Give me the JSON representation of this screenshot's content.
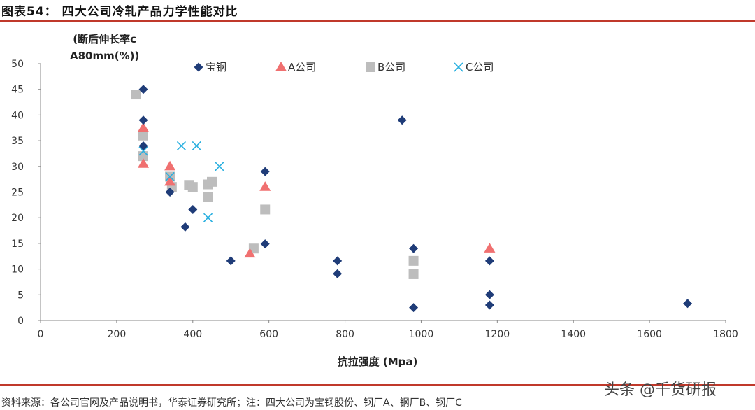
{
  "header": {
    "title": "图表54：  四大公司冷轧产品力学性能对比"
  },
  "footer": {
    "source": "资料来源：各公司官网及产品说明书，华泰证券研究所；注：四大公司为宝钢股份、钢厂A、钢厂B、钢厂C",
    "watermark": "头条 @千货研报"
  },
  "colors": {
    "accent_rule": "#c0392b",
    "baosteel": "#1f3c78",
    "company_a": "#f07070",
    "company_b": "#bdbdbd",
    "company_c": "#2ab0e0"
  },
  "chart_data": {
    "type": "scatter",
    "title": "四大公司冷轧产品力学性能对比",
    "xlabel": "抗拉强度 (Mpa)",
    "ylabel": "(断后伸长率c\nA80mm(%))",
    "xlim": [
      0,
      1800
    ],
    "ylim": [
      0,
      50
    ],
    "x_ticks": [
      0,
      200,
      400,
      600,
      800,
      1000,
      1200,
      1400,
      1600,
      1800
    ],
    "y_ticks": [
      0,
      5,
      10,
      15,
      20,
      25,
      30,
      35,
      40,
      45,
      50
    ],
    "grid": false,
    "legend_position": "top",
    "series": [
      {
        "name": "宝钢",
        "marker": "diamond",
        "color": "#1f3c78",
        "points": [
          [
            270,
            45
          ],
          [
            270,
            39
          ],
          [
            270,
            34
          ],
          [
            340,
            25
          ],
          [
            380,
            18.2
          ],
          [
            400,
            21.6
          ],
          [
            500,
            11.6
          ],
          [
            590,
            29
          ],
          [
            590,
            14.9
          ],
          [
            780,
            11.6
          ],
          [
            780,
            9.1
          ],
          [
            950,
            39
          ],
          [
            980,
            14
          ],
          [
            980,
            2.5
          ],
          [
            1180,
            11.6
          ],
          [
            1180,
            5
          ],
          [
            1180,
            3
          ],
          [
            1700,
            3.3
          ]
        ]
      },
      {
        "name": "A公司",
        "marker": "triangle",
        "color": "#f07070",
        "points": [
          [
            270,
            37.5
          ],
          [
            270,
            30.5
          ],
          [
            340,
            30
          ],
          [
            340,
            27
          ],
          [
            550,
            13
          ],
          [
            590,
            26
          ],
          [
            1180,
            14
          ]
        ]
      },
      {
        "name": "B公司",
        "marker": "square",
        "color": "#bdbdbd",
        "points": [
          [
            250,
            44
          ],
          [
            270,
            36
          ],
          [
            270,
            32
          ],
          [
            340,
            28
          ],
          [
            345,
            26
          ],
          [
            390,
            26.4
          ],
          [
            400,
            26
          ],
          [
            440,
            24
          ],
          [
            440,
            26.5
          ],
          [
            450,
            27
          ],
          [
            560,
            14
          ],
          [
            590,
            21.6
          ],
          [
            980,
            11.6
          ],
          [
            980,
            9
          ]
        ]
      },
      {
        "name": "C公司",
        "marker": "x",
        "color": "#2ab0e0",
        "points": [
          [
            270,
            33
          ],
          [
            340,
            28
          ],
          [
            370,
            34
          ],
          [
            410,
            34
          ],
          [
            440,
            20
          ],
          [
            470,
            30
          ]
        ]
      }
    ]
  }
}
